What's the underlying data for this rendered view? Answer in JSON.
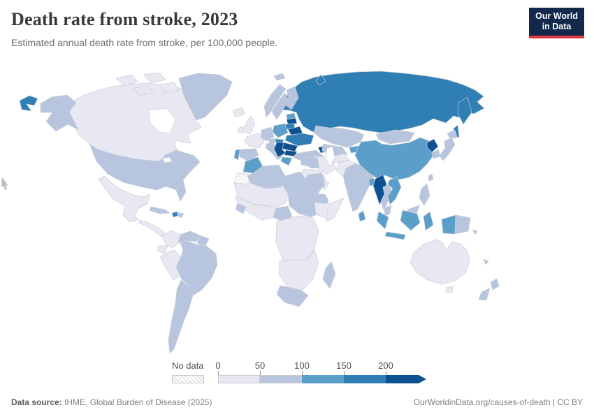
{
  "header": {
    "title": "Death rate from stroke, 2023",
    "subtitle": "Estimated annual death rate from stroke, per 100,000 people.",
    "logo": {
      "line1": "Our World",
      "line2": "in Data",
      "bg": "#12294b",
      "accent": "#e0373f"
    }
  },
  "legend": {
    "no_data_label": "No data",
    "ticks": [
      "0",
      "50",
      "100",
      "150",
      "200"
    ]
  },
  "footer": {
    "source_label": "Data source:",
    "source_text": " IHME, Global Burden of Disease (2025)",
    "right_text": "OurWorldinData.org/causes-of-death | CC BY"
  },
  "chart_data": {
    "type": "heatmap",
    "subtype": "choropleth-world-map",
    "title": "Death rate from stroke, 2023",
    "year": 2023,
    "unit": "deaths per 100,000 people",
    "legend_position": "bottom",
    "bins": [
      {
        "label": "0-50",
        "min": 0,
        "max": 50,
        "color": "#e9e8f2"
      },
      {
        "label": "50-100",
        "min": 50,
        "max": 100,
        "color": "#b7c5de"
      },
      {
        "label": "100-150",
        "min": 100,
        "max": 150,
        "color": "#5b9ec9"
      },
      {
        "label": "150-200",
        "min": 150,
        "max": 200,
        "color": "#2f7fb4"
      },
      {
        "label": "200+",
        "min": 200,
        "max": null,
        "color": "#0d5192"
      }
    ],
    "no_data": {
      "label": "No data"
    },
    "countries": [
      {
        "name": "Russia",
        "bin": 3,
        "shapes": [
          "RU",
          "RUE",
          "RUK",
          "RUS",
          "RUN"
        ]
      },
      {
        "name": "Canada",
        "bin": 0,
        "shapes": [
          "CA",
          "CA1",
          "CA2",
          "CA3",
          "CA4"
        ]
      },
      {
        "name": "United States",
        "bin": 1,
        "shapes": [
          "US",
          "AK"
        ]
      },
      {
        "name": "Greenland",
        "bin": 1,
        "shapes": [
          "GL"
        ]
      },
      {
        "name": "Mexico",
        "bin": 0,
        "shapes": [
          "MX"
        ]
      },
      {
        "name": "Central America",
        "bin": 0,
        "shapes": [
          "CAM"
        ]
      },
      {
        "name": "Cuba",
        "bin": 1,
        "shapes": [
          "CU"
        ]
      },
      {
        "name": "Haiti",
        "bin": 3,
        "shapes": [
          "HT"
        ]
      },
      {
        "name": "Dominican Republic",
        "bin": 1,
        "shapes": [
          "DO"
        ]
      },
      {
        "name": "Colombia",
        "bin": 0,
        "shapes": [
          "CO"
        ]
      },
      {
        "name": "Venezuela",
        "bin": 1,
        "shapes": [
          "VE"
        ]
      },
      {
        "name": "Guyana",
        "bin": 1,
        "shapes": [
          "GY"
        ]
      },
      {
        "name": "Ecuador",
        "bin": 0,
        "shapes": [
          "EC"
        ]
      },
      {
        "name": "Peru",
        "bin": 0,
        "shapes": [
          "PE"
        ]
      },
      {
        "name": "Brazil",
        "bin": 1,
        "shapes": [
          "BR"
        ]
      },
      {
        "name": "Argentina",
        "bin": 1,
        "shapes": [
          "AR"
        ]
      },
      {
        "name": "Iceland",
        "bin": 0,
        "shapes": [
          "IS"
        ]
      },
      {
        "name": "United Kingdom",
        "bin": 0,
        "shapes": [
          "GB"
        ]
      },
      {
        "name": "Ireland",
        "bin": 0,
        "shapes": [
          "IE"
        ]
      },
      {
        "name": "Norway",
        "bin": 1,
        "shapes": [
          "NO",
          "SJ"
        ]
      },
      {
        "name": "Sweden",
        "bin": 1,
        "shapes": [
          "SE"
        ]
      },
      {
        "name": "Finland",
        "bin": 1,
        "shapes": [
          "FI"
        ]
      },
      {
        "name": "France",
        "bin": 0,
        "shapes": [
          "FR"
        ]
      },
      {
        "name": "Spain",
        "bin": 1,
        "shapes": [
          "ES"
        ]
      },
      {
        "name": "Portugal",
        "bin": 2,
        "shapes": [
          "PT"
        ]
      },
      {
        "name": "Germany",
        "bin": 1,
        "shapes": [
          "DE"
        ]
      },
      {
        "name": "Austria",
        "bin": 1,
        "shapes": [
          "AT"
        ]
      },
      {
        "name": "Italy",
        "bin": 1,
        "shapes": [
          "IT"
        ]
      },
      {
        "name": "Poland",
        "bin": 2,
        "shapes": [
          "PL"
        ]
      },
      {
        "name": "Estonia",
        "bin": 2,
        "shapes": [
          "EE"
        ]
      },
      {
        "name": "Latvia",
        "bin": 4,
        "shapes": [
          "LV"
        ]
      },
      {
        "name": "Lithuania",
        "bin": 3,
        "shapes": [
          "LT"
        ]
      },
      {
        "name": "Belarus",
        "bin": 4,
        "shapes": [
          "BY"
        ]
      },
      {
        "name": "Ukraine",
        "bin": 3,
        "shapes": [
          "UA"
        ]
      },
      {
        "name": "Hungary",
        "bin": 3,
        "shapes": [
          "HU"
        ]
      },
      {
        "name": "Romania",
        "bin": 4,
        "shapes": [
          "RO"
        ]
      },
      {
        "name": "Serbia",
        "bin": 4,
        "shapes": [
          "RS"
        ]
      },
      {
        "name": "Bulgaria",
        "bin": 4,
        "shapes": [
          "BG"
        ]
      },
      {
        "name": "Greece",
        "bin": 2,
        "shapes": [
          "GR"
        ]
      },
      {
        "name": "Turkey",
        "bin": 1,
        "shapes": [
          "TR"
        ]
      },
      {
        "name": "Georgia",
        "bin": 4,
        "shapes": [
          "CC"
        ]
      },
      {
        "name": "Kazakhstan",
        "bin": 1,
        "shapes": [
          "KZ"
        ]
      },
      {
        "name": "Uzbekistan",
        "bin": 1,
        "shapes": [
          "UZ"
        ]
      },
      {
        "name": "Tajikistan",
        "bin": 2,
        "shapes": [
          "KG"
        ]
      },
      {
        "name": "Mongolia",
        "bin": 1,
        "shapes": [
          "MN"
        ]
      },
      {
        "name": "China",
        "bin": 2,
        "shapes": [
          "CN"
        ]
      },
      {
        "name": "Taiwan",
        "bin": 1,
        "shapes": [
          "TW"
        ]
      },
      {
        "name": "North Korea",
        "bin": 4,
        "shapes": [
          "KP"
        ]
      },
      {
        "name": "South Korea",
        "bin": 1,
        "shapes": [
          "KR"
        ]
      },
      {
        "name": "Japan",
        "bin": 1,
        "shapes": [
          "JP1",
          "JP2"
        ]
      },
      {
        "name": "India",
        "bin": 1,
        "shapes": [
          "IN"
        ]
      },
      {
        "name": "Nepal",
        "bin": 1,
        "shapes": [
          "NP"
        ]
      },
      {
        "name": "Bangladesh",
        "bin": 2,
        "shapes": [
          "BD"
        ]
      },
      {
        "name": "Pakistan",
        "bin": 0,
        "shapes": [
          "PK"
        ]
      },
      {
        "name": "Afghanistan",
        "bin": 0,
        "shapes": [
          "AF"
        ]
      },
      {
        "name": "Iran",
        "bin": 0,
        "shapes": [
          "IR"
        ]
      },
      {
        "name": "Syria",
        "bin": 1,
        "shapes": [
          "SY"
        ]
      },
      {
        "name": "Iraq",
        "bin": 1,
        "shapes": [
          "IQ"
        ]
      },
      {
        "name": "Saudi Arabia",
        "bin": 0,
        "shapes": [
          "SA"
        ]
      },
      {
        "name": "Yemen",
        "bin": 1,
        "shapes": [
          "YE"
        ]
      },
      {
        "name": "Oman",
        "bin": 0,
        "shapes": [
          "OM"
        ]
      },
      {
        "name": "Morocco",
        "bin": 2,
        "shapes": [
          "MA"
        ]
      },
      {
        "name": "Western Sahara",
        "bin": null,
        "shapes": [
          "EH"
        ]
      },
      {
        "name": "Algeria",
        "bin": 1,
        "shapes": [
          "DZ"
        ]
      },
      {
        "name": "Libya",
        "bin": 1,
        "shapes": [
          "LY"
        ]
      },
      {
        "name": "Egypt",
        "bin": 1,
        "shapes": [
          "EG"
        ]
      },
      {
        "name": "Sahel (Mauritania, Mali, Niger)",
        "bin": 0,
        "shapes": [
          "SH"
        ]
      },
      {
        "name": "Chad and Sudan",
        "bin": 1,
        "shapes": [
          "TD"
        ]
      },
      {
        "name": "West Africa",
        "bin": 0,
        "shapes": [
          "WA"
        ]
      },
      {
        "name": "Guinea",
        "bin": 1,
        "shapes": [
          "GN"
        ]
      },
      {
        "name": "Nigeria",
        "bin": 1,
        "shapes": [
          "NG"
        ]
      },
      {
        "name": "Ethiopia",
        "bin": 0,
        "shapes": [
          "ET"
        ]
      },
      {
        "name": "Somalia",
        "bin": 0,
        "shapes": [
          "SO"
        ]
      },
      {
        "name": "Central Africa",
        "bin": 0,
        "shapes": [
          "CF"
        ]
      },
      {
        "name": "Southern Africa",
        "bin": 0,
        "shapes": [
          "SF"
        ]
      },
      {
        "name": "South Africa",
        "bin": 1,
        "shapes": [
          "ZA"
        ]
      },
      {
        "name": "Madagascar",
        "bin": 1,
        "shapes": [
          "MG"
        ]
      },
      {
        "name": "Myanmar",
        "bin": 4,
        "shapes": [
          "MM"
        ]
      },
      {
        "name": "Thailand",
        "bin": 1,
        "shapes": [
          "TH"
        ]
      },
      {
        "name": "Vietnam",
        "bin": 2,
        "shapes": [
          "VN"
        ]
      },
      {
        "name": "Malaysia",
        "bin": 1,
        "shapes": [
          "MY1",
          "MY2"
        ]
      },
      {
        "name": "Indonesia",
        "bin": 2,
        "shapes": [
          "ID1",
          "ID2",
          "ID3",
          "ID4",
          "ID5"
        ]
      },
      {
        "name": "Papua New Guinea",
        "bin": 1,
        "shapes": [
          "PG"
        ]
      },
      {
        "name": "Philippines",
        "bin": 1,
        "shapes": [
          "PH"
        ]
      },
      {
        "name": "Sri Lanka",
        "bin": 2,
        "shapes": [
          "LK"
        ]
      },
      {
        "name": "Australia",
        "bin": 0,
        "shapes": [
          "AU",
          "TS"
        ]
      },
      {
        "name": "New Zealand",
        "bin": 1,
        "shapes": [
          "NZ1",
          "NZ2"
        ]
      },
      {
        "name": "Solomon Islands",
        "bin": 1,
        "shapes": [
          "SB"
        ]
      },
      {
        "name": "New Caledonia",
        "bin": 1,
        "shapes": [
          "NC"
        ]
      }
    ]
  }
}
